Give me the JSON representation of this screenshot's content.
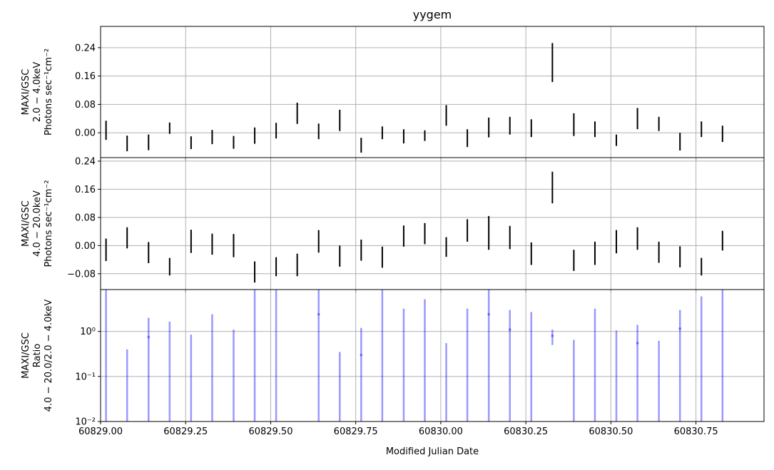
{
  "chart_data": {
    "type": "errorbar",
    "title": "yygem",
    "xlabel": "Modified Julian Date",
    "xlim": [
      60829.0,
      60830.95
    ],
    "xticks": [
      60829.0,
      60829.25,
      60829.5,
      60829.75,
      60830.0,
      60830.25,
      60830.5,
      60830.75
    ],
    "xtick_labels": [
      "60829.00",
      "60829.25",
      "60829.50",
      "60829.75",
      "60830.00",
      "60830.25",
      "60830.50",
      "60830.75"
    ],
    "grid": true,
    "x": [
      60829.016,
      60829.078,
      60829.141,
      60829.203,
      60829.266,
      60829.328,
      60829.391,
      60829.453,
      60829.516,
      60829.578,
      60829.641,
      60829.703,
      60829.766,
      60829.828,
      60829.891,
      60829.953,
      60830.016,
      60830.078,
      60830.141,
      60830.203,
      60830.266,
      60830.328,
      60830.391,
      60830.453,
      60830.516,
      60830.578,
      60830.641,
      60830.703,
      60830.766,
      60830.828
    ],
    "panels": [
      {
        "ylabel_lines": [
          "MAXI/GSC",
          "2.0 − 4.0keV",
          "Photons sec⁻¹cm⁻²"
        ],
        "scale": "linear",
        "ylim": [
          -0.07,
          0.3
        ],
        "yticks": [
          0.0,
          0.08,
          0.16,
          0.24
        ],
        "ytick_labels": [
          "0.00",
          "0.08",
          "0.16",
          "0.24"
        ],
        "y": [
          0.007,
          -0.03,
          -0.027,
          0.013,
          -0.028,
          -0.012,
          -0.027,
          -0.008,
          0.006,
          0.055,
          0.004,
          0.035,
          -0.035,
          0.0,
          -0.01,
          -0.008,
          0.049,
          -0.015,
          0.015,
          0.02,
          0.013,
          0.198,
          0.023,
          0.01,
          -0.021,
          0.04,
          0.025,
          -0.025,
          0.01,
          -0.003
        ],
        "yerr": [
          0.027,
          0.022,
          0.022,
          0.016,
          0.018,
          0.02,
          0.018,
          0.023,
          0.022,
          0.03,
          0.022,
          0.03,
          0.021,
          0.018,
          0.02,
          0.015,
          0.029,
          0.025,
          0.028,
          0.025,
          0.025,
          0.055,
          0.032,
          0.022,
          0.016,
          0.03,
          0.02,
          0.025,
          0.022,
          0.023
        ]
      },
      {
        "ylabel_lines": [
          "MAXI/GSC",
          "4.0 − 20.0keV",
          "Photons sec⁻¹cm⁻²"
        ],
        "scale": "linear",
        "ylim": [
          -0.125,
          0.25
        ],
        "yticks": [
          -0.08,
          0.0,
          0.08,
          0.16,
          0.24
        ],
        "ytick_labels": [
          "−0.08",
          "0.00",
          "0.08",
          "0.16",
          "0.24"
        ],
        "y": [
          -0.012,
          0.022,
          -0.02,
          -0.06,
          0.012,
          0.004,
          0.0,
          -0.075,
          -0.06,
          -0.055,
          0.012,
          -0.03,
          -0.013,
          -0.033,
          0.027,
          0.034,
          -0.004,
          0.043,
          0.036,
          0.023,
          -0.023,
          0.165,
          -0.042,
          -0.022,
          0.011,
          0.02,
          -0.019,
          -0.032,
          -0.06,
          0.014
        ],
        "yerr": [
          0.032,
          0.03,
          0.03,
          0.025,
          0.033,
          0.03,
          0.033,
          0.03,
          0.027,
          0.032,
          0.032,
          0.03,
          0.03,
          0.03,
          0.03,
          0.03,
          0.028,
          0.032,
          0.048,
          0.033,
          0.032,
          0.045,
          0.03,
          0.033,
          0.033,
          0.032,
          0.03,
          0.03,
          0.025,
          0.028
        ]
      },
      {
        "ylabel_lines": [
          "MAXI/GSC",
          "Ratio",
          "4.0 − 20.0/2.0 − 4.0keV"
        ],
        "scale": "log",
        "ylim": [
          0.01,
          8.5
        ],
        "yticks": [
          0.01,
          0.1,
          1.0
        ],
        "ytick_labels": [
          "10⁻²",
          "10⁻¹",
          "10⁰"
        ],
        "y": [
          0.01,
          0.01,
          0.75,
          0.01,
          0.01,
          0.01,
          0.01,
          0.01,
          0.01,
          0.01,
          2.4,
          0.01,
          0.3,
          0.01,
          0.01,
          0.01,
          0.01,
          0.01,
          2.4,
          1.1,
          0.01,
          0.8,
          0.01,
          0.01,
          0.01,
          0.55,
          0.01,
          1.15,
          0.01,
          0.01
        ],
        "low": [
          0.01,
          0.01,
          0.01,
          0.01,
          0.01,
          0.01,
          0.01,
          0.01,
          0.01,
          0.01,
          0.01,
          0.01,
          0.01,
          0.01,
          0.01,
          0.01,
          0.01,
          0.01,
          0.01,
          0.01,
          0.01,
          0.5,
          0.01,
          0.01,
          0.01,
          0.01,
          0.01,
          0.01,
          0.01,
          0.01
        ],
        "high": [
          8.5,
          0.4,
          2.0,
          1.65,
          0.85,
          2.4,
          1.1,
          8.5,
          8.5,
          0.01,
          8.5,
          0.35,
          1.2,
          8.5,
          3.2,
          5.2,
          0.55,
          3.2,
          8.5,
          3.0,
          2.7,
          1.1,
          0.65,
          3.2,
          1.05,
          1.4,
          0.62,
          3.0,
          6.0,
          8.5
        ]
      }
    ]
  }
}
